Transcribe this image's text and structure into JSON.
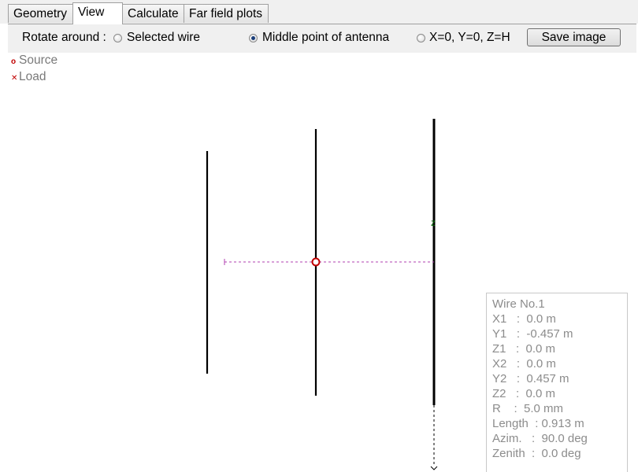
{
  "tabs": [
    {
      "label": "Geometry",
      "active": false
    },
    {
      "label": "View",
      "active": true
    },
    {
      "label": "Calculate",
      "active": false
    },
    {
      "label": "Far field plots",
      "active": false
    }
  ],
  "toolbar": {
    "rotate_label": "Rotate around :",
    "options": [
      {
        "label": "Selected wire",
        "checked": false
      },
      {
        "label": "Middle point of antenna",
        "checked": true
      },
      {
        "label": "X=0, Y=0, Z=H",
        "checked": false
      }
    ],
    "save_label": "Save image"
  },
  "legend": {
    "source_label": "Source",
    "load_label": "Load"
  },
  "axis_label": "z",
  "wire_info": {
    "title": "Wire No.1",
    "lines": [
      "X1   :  0.0 m",
      "Y1   :  -0.457 m",
      "Z1   :  0.0 m",
      "X2   :  0.0 m",
      "Y2   :  0.457 m",
      "Z2   :  0.0 m",
      "R    :  5.0 mm",
      "Length  : 0.913 m",
      "Azim.   :  90.0 deg",
      "Zenith  :  0.0 deg"
    ]
  },
  "colors": {
    "wire": "#000000",
    "source": "#c00000",
    "axis": "#b040b0",
    "axis_label": "#006400"
  }
}
